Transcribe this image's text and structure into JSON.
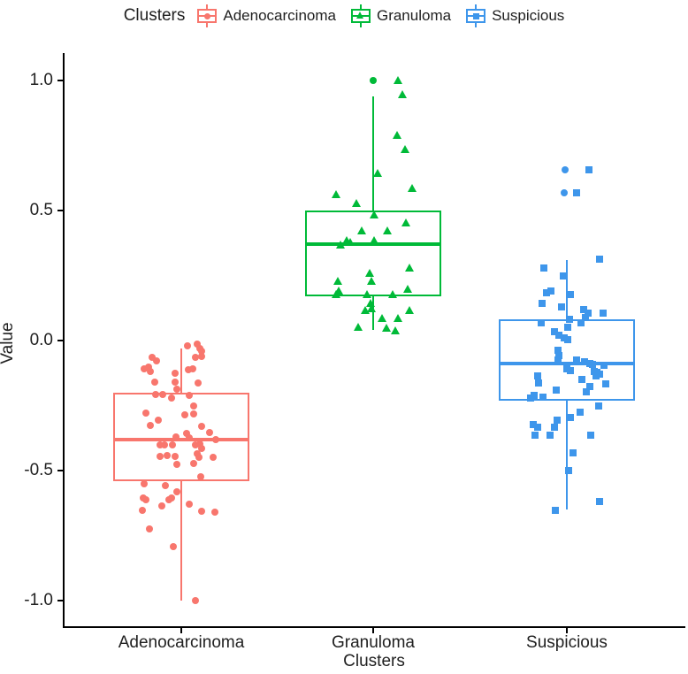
{
  "legend": {
    "title": "Clusters",
    "items": [
      {
        "label": "Adenocarcinoma",
        "color": "#F8766D",
        "marker": "circle"
      },
      {
        "label": "Granuloma",
        "color": "#00BA38",
        "marker": "triangle"
      },
      {
        "label": "Suspicious",
        "color": "#3E96EB",
        "marker": "square"
      }
    ]
  },
  "axes": {
    "y": {
      "label": "Value",
      "ticks": [
        {
          "label": "1.0",
          "v": 1.0
        },
        {
          "label": "0.5",
          "v": 0.5
        },
        {
          "label": "0.0",
          "v": 0.0
        },
        {
          "label": "-0.5",
          "v": -0.5
        },
        {
          "label": "-1.0",
          "v": -1.0
        }
      ]
    },
    "x": {
      "label": "Clusters",
      "categories": [
        "Adenocarcinoma",
        "Granuloma",
        "Suspicious"
      ]
    }
  },
  "chart_data": {
    "type": "boxplot+jitter",
    "title": "",
    "xlabel": "Clusters",
    "ylabel": "Value",
    "ylim": [
      -1.05,
      1.05
    ],
    "grid": false,
    "legend_position": "top",
    "categories": [
      "Adenocarcinoma",
      "Granuloma",
      "Suspicious"
    ],
    "groups": [
      {
        "name": "Adenocarcinoma",
        "color": "#F8766D",
        "marker": "circle",
        "box": {
          "whisker_low": -1.0,
          "q1": -0.54,
          "median": -0.38,
          "q3": -0.2,
          "whisker_high": -0.03
        },
        "points": [
          [
            7,
            -0.02
          ],
          [
            18,
            -0.012
          ],
          [
            21,
            -0.03
          ],
          [
            23,
            -0.04
          ],
          [
            -33,
            -0.065
          ],
          [
            -28,
            -0.078
          ],
          [
            16,
            -0.065
          ],
          [
            23,
            -0.06
          ],
          [
            -42,
            -0.11
          ],
          [
            -37,
            -0.102
          ],
          [
            -35,
            -0.119
          ],
          [
            -7,
            -0.126
          ],
          [
            8,
            -0.112
          ],
          [
            13,
            -0.109
          ],
          [
            -30,
            -0.16
          ],
          [
            -7,
            -0.16
          ],
          [
            19,
            -0.163
          ],
          [
            -5,
            -0.187
          ],
          [
            -29,
            -0.207
          ],
          [
            -21,
            -0.207
          ],
          [
            -11,
            -0.221
          ],
          [
            9,
            -0.211
          ],
          [
            -40,
            -0.279
          ],
          [
            14,
            -0.252
          ],
          [
            4,
            -0.286
          ],
          [
            14,
            -0.282
          ],
          [
            -26,
            -0.306
          ],
          [
            -35,
            -0.327
          ],
          [
            23,
            -0.33
          ],
          [
            32,
            -0.354
          ],
          [
            6,
            -0.357
          ],
          [
            -6,
            -0.371
          ],
          [
            9,
            -0.374
          ],
          [
            39,
            -0.381
          ],
          [
            -24,
            -0.401
          ],
          [
            -19,
            -0.401
          ],
          [
            -10,
            -0.401
          ],
          [
            16,
            -0.401
          ],
          [
            21,
            -0.398
          ],
          [
            23,
            -0.415
          ],
          [
            -24,
            -0.446
          ],
          [
            -16,
            -0.442
          ],
          [
            -7,
            -0.446
          ],
          [
            18,
            -0.435
          ],
          [
            20,
            -0.449
          ],
          [
            36,
            -0.449
          ],
          [
            -5,
            -0.476
          ],
          [
            14,
            -0.473
          ],
          [
            22,
            -0.524
          ],
          [
            -42,
            -0.551
          ],
          [
            -18,
            -0.558
          ],
          [
            -5,
            -0.582
          ],
          [
            -43,
            -0.605
          ],
          [
            -40,
            -0.612
          ],
          [
            -14,
            -0.612
          ],
          [
            -11,
            -0.605
          ],
          [
            -22,
            -0.636
          ],
          [
            -44,
            -0.653
          ],
          [
            9,
            -0.629
          ],
          [
            23,
            -0.656
          ],
          [
            38,
            -0.66
          ],
          [
            -36,
            -0.724
          ],
          [
            -9,
            -0.793
          ],
          [
            16,
            -1.0
          ]
        ]
      },
      {
        "name": "Granuloma",
        "color": "#00BA38",
        "marker": "triangle",
        "box": {
          "whisker_low": 0.04,
          "q1": 0.17,
          "median": 0.37,
          "q3": 0.5,
          "whisker_high": 0.94
        },
        "points": [
          [
            0,
            1.0,
            "circle"
          ],
          [
            28,
            1.0
          ],
          [
            33,
            0.945
          ],
          [
            27,
            0.79
          ],
          [
            36,
            0.735
          ],
          [
            5,
            0.643
          ],
          [
            44,
            0.585
          ],
          [
            -42,
            0.56
          ],
          [
            -19,
            0.527
          ],
          [
            1,
            0.483
          ],
          [
            37,
            0.452
          ],
          [
            -13,
            0.422
          ],
          [
            16,
            0.422
          ],
          [
            -37,
            0.367
          ],
          [
            -30,
            0.384
          ],
          [
            -26,
            0.378
          ],
          [
            1,
            0.384
          ],
          [
            41,
            0.279
          ],
          [
            -4,
            0.259
          ],
          [
            -2,
            0.228
          ],
          [
            -40,
            0.228
          ],
          [
            -39,
            0.19
          ],
          [
            -42,
            0.177
          ],
          [
            -7,
            0.177
          ],
          [
            22,
            0.177
          ],
          [
            39,
            0.197
          ],
          [
            -3,
            0.143
          ],
          [
            -2,
            0.122
          ],
          [
            -9,
            0.116
          ],
          [
            41,
            0.116
          ],
          [
            10,
            0.085
          ],
          [
            28,
            0.085
          ],
          [
            -17,
            0.051
          ],
          [
            15,
            0.048
          ],
          [
            25,
            0.037
          ]
        ]
      },
      {
        "name": "Suspicious",
        "color": "#3E96EB",
        "marker": "square",
        "box": {
          "whisker_low": -0.65,
          "q1": -0.23,
          "median": -0.09,
          "q3": 0.08,
          "whisker_high": 0.31
        },
        "points": [
          [
            -2,
            0.656,
            "circle"
          ],
          [
            25,
            0.656
          ],
          [
            -3,
            0.568,
            "circle"
          ],
          [
            11,
            0.568
          ],
          [
            37,
            0.313
          ],
          [
            -26,
            0.279
          ],
          [
            -4,
            0.248
          ],
          [
            -23,
            0.184
          ],
          [
            -18,
            0.19
          ],
          [
            -28,
            0.143
          ],
          [
            4,
            0.177
          ],
          [
            -6,
            0.13
          ],
          [
            19,
            0.119
          ],
          [
            24,
            0.105
          ],
          [
            41,
            0.105
          ],
          [
            21,
            0.088
          ],
          [
            16,
            0.068
          ],
          [
            3,
            0.082
          ],
          [
            -29,
            0.068
          ],
          [
            1,
            0.051
          ],
          [
            -14,
            0.034
          ],
          [
            -9,
            0.02
          ],
          [
            -3,
            0.01
          ],
          [
            1,
            0.003
          ],
          [
            -10,
            -0.037
          ],
          [
            -9,
            -0.058
          ],
          [
            -10,
            -0.075
          ],
          [
            11,
            -0.075
          ],
          [
            20,
            -0.082
          ],
          [
            26,
            -0.088
          ],
          [
            29,
            -0.092
          ],
          [
            42,
            -0.095
          ],
          [
            0,
            -0.109
          ],
          [
            4,
            -0.115
          ],
          [
            31,
            -0.12
          ],
          [
            34,
            -0.124
          ],
          [
            37,
            -0.129
          ],
          [
            33,
            -0.136
          ],
          [
            -33,
            -0.136
          ],
          [
            -32,
            -0.163
          ],
          [
            17,
            -0.15
          ],
          [
            26,
            -0.177
          ],
          [
            22,
            -0.197
          ],
          [
            44,
            -0.167
          ],
          [
            -12,
            -0.19
          ],
          [
            -37,
            -0.211
          ],
          [
            -27,
            -0.218
          ],
          [
            -41,
            -0.221
          ],
          [
            36,
            -0.252
          ],
          [
            15,
            -0.276
          ],
          [
            4,
            -0.296
          ],
          [
            -11,
            -0.306
          ],
          [
            -14,
            -0.333
          ],
          [
            -19,
            -0.364
          ],
          [
            -38,
            -0.323
          ],
          [
            -33,
            -0.333
          ],
          [
            -36,
            -0.364
          ],
          [
            27,
            -0.364
          ],
          [
            7,
            -0.432
          ],
          [
            2,
            -0.5
          ],
          [
            37,
            -0.619
          ],
          [
            -13,
            -0.653
          ]
        ]
      }
    ]
  }
}
